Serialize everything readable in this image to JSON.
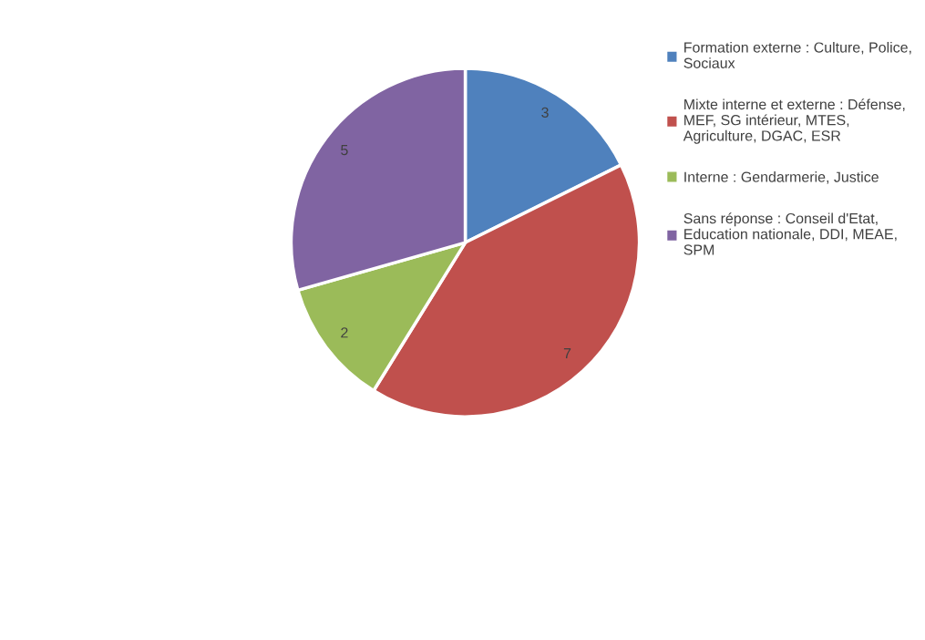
{
  "chart_data": {
    "type": "pie",
    "categories": [
      "Formation externe : Culture, Police, Sociaux",
      "Mixte interne et externe : Défense, MEF, SG intérieur, MTES, Agriculture, DGAC, ESR",
      "Interne : Gendarmerie, Justice",
      "Sans réponse : Conseil d'Etat, Education nationale, DDI, MEAE, SPM"
    ],
    "values": [
      3,
      7,
      2,
      5
    ],
    "colors": [
      "#4f81bd",
      "#c0504d",
      "#9bbb59",
      "#8064a2"
    ],
    "data_labels": true,
    "legend": "right"
  }
}
